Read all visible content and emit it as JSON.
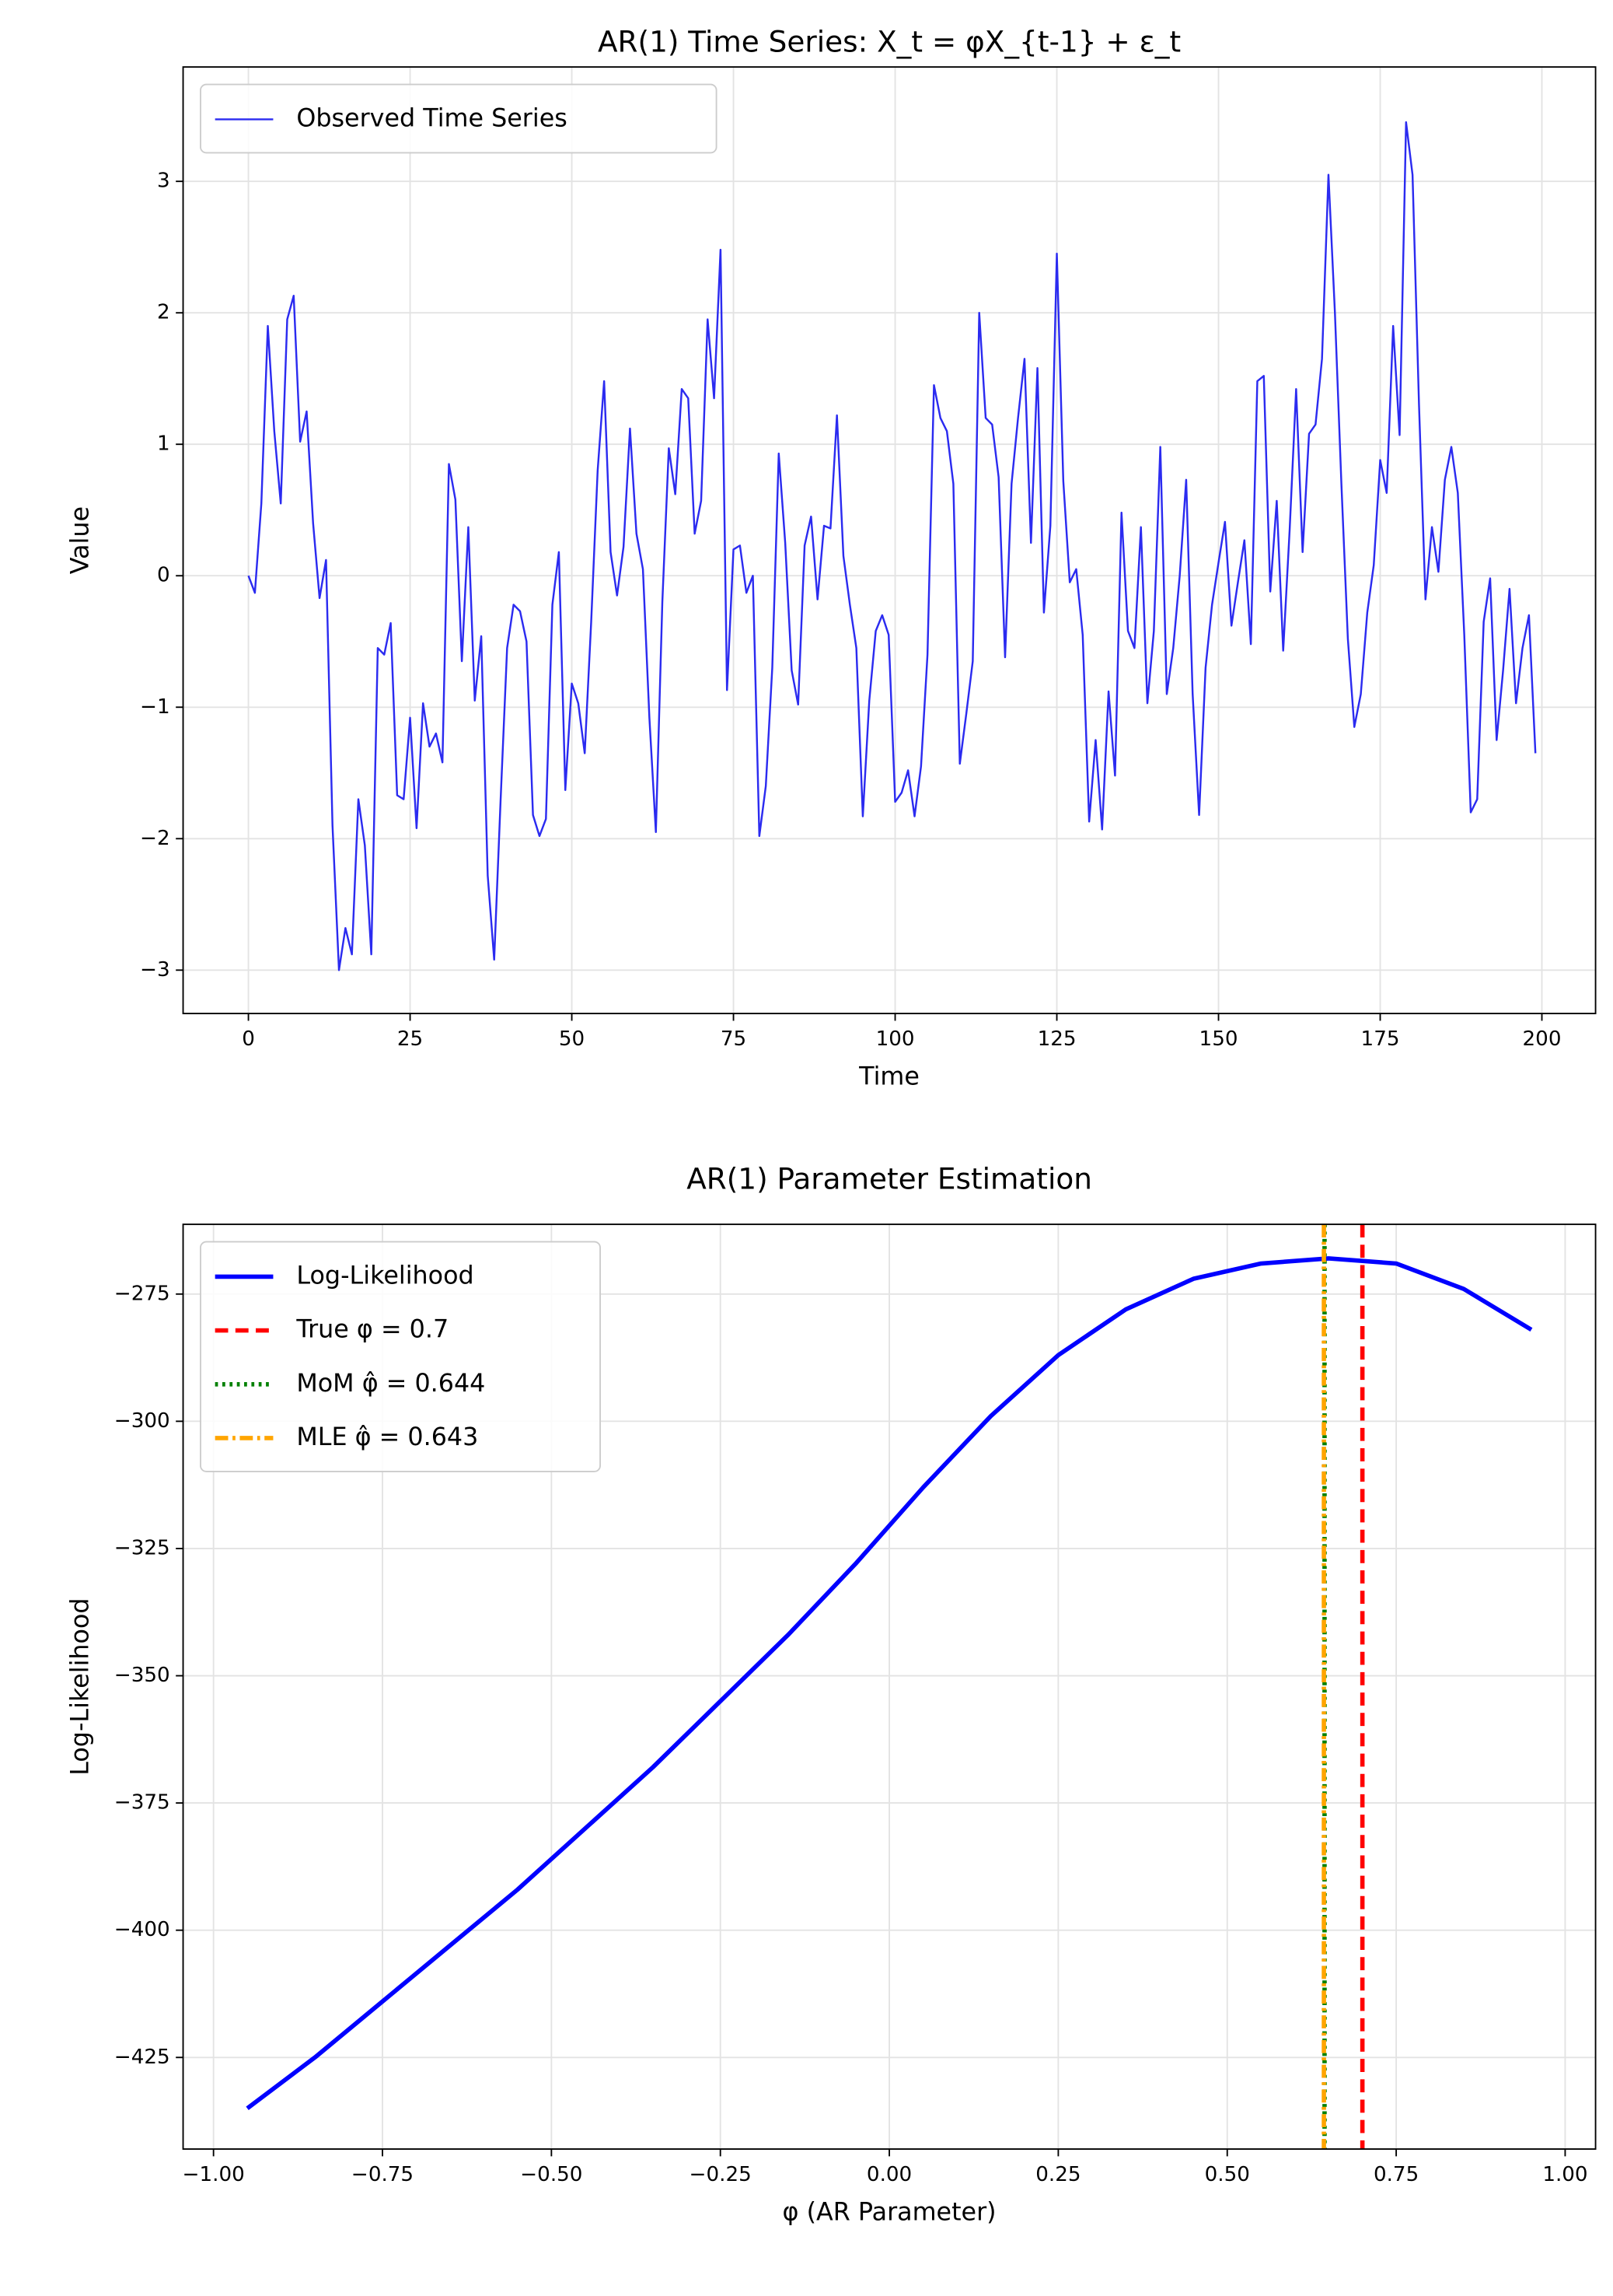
{
  "chart_data": [
    {
      "type": "line",
      "title": "AR(1) Time Series: X_t = φX_{t-1} + ε_t",
      "x_label": "Time",
      "y_label": "Value",
      "grid": true,
      "legend": "upper left",
      "xlim": [
        -10.1,
        208.3
      ],
      "ylim": [
        -3.33,
        3.87
      ],
      "xticks": [
        0,
        25,
        50,
        75,
        100,
        125,
        150,
        175,
        200
      ],
      "yticks": [
        {
          "value": -3,
          "label": "−3"
        },
        {
          "value": -2,
          "label": "−2"
        },
        {
          "value": -1,
          "label": "−1"
        },
        0,
        1,
        2,
        3
      ],
      "x": [
        0,
        1,
        2,
        3,
        4,
        5,
        6,
        7,
        8,
        9,
        10,
        11,
        12,
        13,
        14,
        15,
        16,
        17,
        18,
        19,
        20,
        21,
        22,
        23,
        24,
        25,
        26,
        27,
        28,
        29,
        30,
        31,
        32,
        33,
        34,
        35,
        36,
        37,
        38,
        39,
        40,
        41,
        42,
        43,
        44,
        45,
        46,
        47,
        48,
        49,
        50,
        51,
        52,
        53,
        54,
        55,
        56,
        57,
        58,
        59,
        60,
        61,
        62,
        63,
        64,
        65,
        66,
        67,
        68,
        69,
        70,
        71,
        72,
        73,
        74,
        75,
        76,
        77,
        78,
        79,
        80,
        81,
        82,
        83,
        84,
        85,
        86,
        87,
        88,
        89,
        90,
        91,
        92,
        93,
        94,
        95,
        96,
        97,
        98,
        99,
        100,
        101,
        102,
        103,
        104,
        105,
        106,
        107,
        108,
        109,
        110,
        111,
        112,
        113,
        114,
        115,
        116,
        117,
        118,
        119,
        120,
        121,
        122,
        123,
        124,
        125,
        126,
        127,
        128,
        129,
        130,
        131,
        132,
        133,
        134,
        135,
        136,
        137,
        138,
        139,
        140,
        141,
        142,
        143,
        144,
        145,
        146,
        147,
        148,
        149,
        150,
        151,
        152,
        153,
        154,
        155,
        156,
        157,
        158,
        159,
        160,
        161,
        162,
        163,
        164,
        165,
        166,
        167,
        168,
        169,
        170,
        171,
        172,
        173,
        174,
        175,
        176,
        177,
        178,
        179,
        180,
        181,
        182,
        183,
        184,
        185,
        186,
        187,
        188,
        189,
        190,
        191,
        192,
        193,
        194,
        195,
        196,
        197,
        198,
        199
      ],
      "series": [
        {
          "name": "Observed Time Series",
          "color": "#2b2bf0",
          "width": 1.3,
          "values": [
            0,
            -0.13,
            0.55,
            1.9,
            1.1,
            0.55,
            1.95,
            2.13,
            1.02,
            1.25,
            0.4,
            -0.17,
            0.12,
            -1.9,
            -3.0,
            -2.68,
            -2.88,
            -1.7,
            -2.05,
            -2.88,
            -0.55,
            -0.6,
            -0.36,
            -1.67,
            -1.7,
            -1.08,
            -1.92,
            -0.97,
            -1.3,
            -1.2,
            -1.42,
            0.85,
            0.58,
            -0.65,
            0.37,
            -0.95,
            -0.46,
            -2.28,
            -2.92,
            -1.7,
            -0.55,
            -0.22,
            -0.27,
            -0.5,
            -1.82,
            -1.98,
            -1.85,
            -0.22,
            0.18,
            -1.63,
            -0.82,
            -0.97,
            -1.35,
            -0.35,
            0.8,
            1.48,
            0.18,
            -0.15,
            0.22,
            1.12,
            0.32,
            0.05,
            -1.08,
            -1.95,
            -0.2,
            0.97,
            0.62,
            1.42,
            1.35,
            0.32,
            0.57,
            1.95,
            1.35,
            2.48,
            -0.87,
            0.2,
            0.23,
            -0.13,
            0.0,
            -1.98,
            -1.6,
            -0.7,
            0.93,
            0.25,
            -0.72,
            -0.98,
            0.23,
            0.45,
            -0.18,
            0.38,
            0.36,
            1.22,
            0.15,
            -0.22,
            -0.55,
            -1.83,
            -0.95,
            -0.42,
            -0.3,
            -0.45,
            -1.72,
            -1.65,
            -1.48,
            -1.83,
            -1.45,
            -0.6,
            1.45,
            1.2,
            1.1,
            0.7,
            -1.43,
            -1.05,
            -0.65,
            2.0,
            1.2,
            1.15,
            0.75,
            -0.62,
            0.7,
            1.2,
            1.65,
            0.25,
            1.58,
            -0.28,
            0.38,
            2.45,
            0.72,
            -0.05,
            0.05,
            -0.45,
            -1.87,
            -1.25,
            -1.93,
            -0.88,
            -1.52,
            0.48,
            -0.42,
            -0.55,
            0.37,
            -0.97,
            -0.42,
            0.98,
            -0.9,
            -0.55,
            0.0,
            0.73,
            -0.9,
            -1.82,
            -0.7,
            -0.22,
            0.1,
            0.41,
            -0.38,
            -0.05,
            0.27,
            -0.52,
            1.48,
            1.52,
            -0.12,
            0.57,
            -0.57,
            0.35,
            1.42,
            0.18,
            1.08,
            1.15,
            1.65,
            3.05,
            2.0,
            0.7,
            -0.48,
            -1.15,
            -0.9,
            -0.28,
            0.08,
            0.88,
            0.63,
            1.9,
            1.07,
            3.45,
            3.05,
            1.3,
            -0.18,
            0.37,
            0.03,
            0.73,
            0.98,
            0.63,
            -0.45,
            -1.8,
            -1.7,
            -0.35,
            -0.02,
            -1.25,
            -0.72,
            -0.1,
            -0.97,
            -0.55,
            -0.3,
            -1.35
          ]
        }
      ]
    },
    {
      "type": "line",
      "title": "AR(1) Parameter Estimation",
      "x_label": "φ (AR Parameter)",
      "y_label": "Log-Likelihood",
      "grid": true,
      "legend": "upper left",
      "xlim": [
        -1.045,
        1.045
      ],
      "ylim": [
        -443,
        -261.3
      ],
      "xticks": [
        {
          "value": -1,
          "label": "−1.00"
        },
        {
          "value": -0.75,
          "label": "−0.75"
        },
        {
          "value": -0.5,
          "label": "−0.50"
        },
        {
          "value": -0.25,
          "label": "−0.25"
        },
        {
          "value": 0,
          "label": "0.00"
        },
        {
          "value": 0.25,
          "label": "0.25"
        },
        {
          "value": 0.5,
          "label": "0.50"
        },
        {
          "value": 0.75,
          "label": "0.75"
        },
        {
          "value": 1,
          "label": "1.00"
        }
      ],
      "yticks": [
        {
          "value": -425,
          "label": "−425"
        },
        {
          "value": -400,
          "label": "−400"
        },
        {
          "value": -375,
          "label": "−375"
        },
        {
          "value": -350,
          "label": "−350"
        },
        {
          "value": -325,
          "label": "−325"
        },
        {
          "value": -300,
          "label": "−300"
        },
        {
          "value": -275,
          "label": "−275"
        }
      ],
      "x": [
        -0.95,
        -0.85,
        -0.75,
        -0.65,
        -0.55,
        -0.45,
        -0.35,
        -0.25,
        -0.15,
        -0.05,
        0.05,
        0.15,
        0.25,
        0.35,
        0.45,
        0.55,
        0.65,
        0.75,
        0.85,
        0.95
      ],
      "series": [
        {
          "name": "Log-Likelihood",
          "color": "#0000ff",
          "width": 3,
          "values": [
            -435,
            -425,
            -414,
            -403,
            -392,
            -380,
            -368,
            -355,
            -342,
            -328,
            -313,
            -299,
            -287,
            -278,
            -272,
            -269,
            -268,
            -269,
            -274,
            -282
          ]
        }
      ],
      "vlines": [
        {
          "name": "True φ = 0.7",
          "value": 0.7,
          "color": "#ff0000",
          "dash": "9 5"
        },
        {
          "name": "MoM φ̂ = 0.644",
          "value": 0.644,
          "color": "#008000",
          "dash": "2 3"
        },
        {
          "name": "MLE φ̂ = 0.643",
          "value": 0.643,
          "color": "#ffa500",
          "dash": "9 3 2 3"
        }
      ]
    }
  ]
}
